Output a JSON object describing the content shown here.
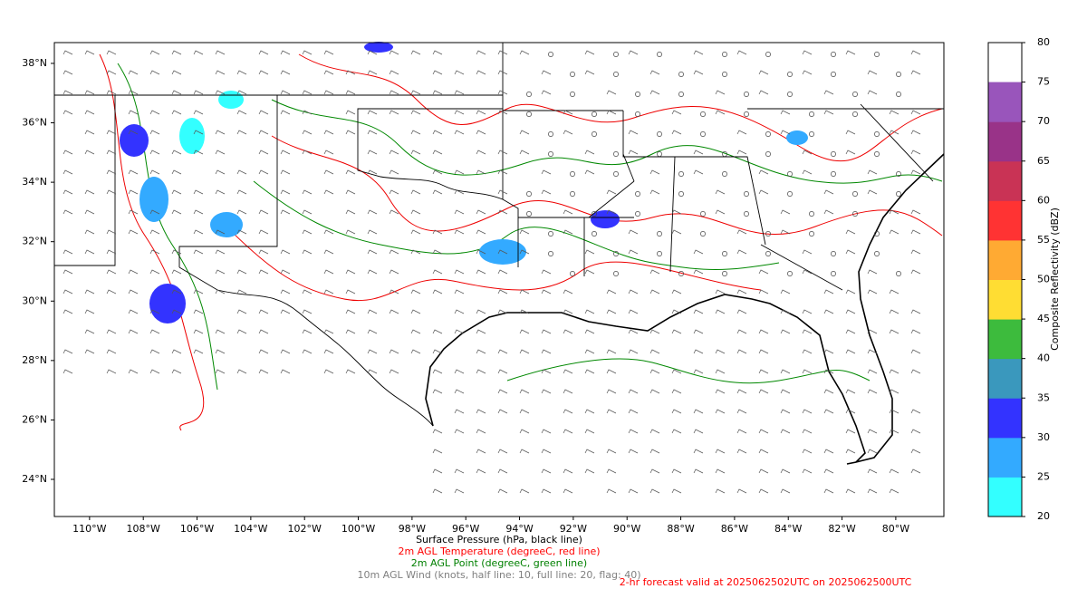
{
  "map": {
    "xticks": [
      {
        "value": -110,
        "label": "110°W"
      },
      {
        "value": -108,
        "label": "108°W"
      },
      {
        "value": -106,
        "label": "106°W"
      },
      {
        "value": -104,
        "label": "104°W"
      },
      {
        "value": -102,
        "label": "102°W"
      },
      {
        "value": -100,
        "label": "100°W"
      },
      {
        "value": -98,
        "label": "98°W"
      },
      {
        "value": -96,
        "label": "96°W"
      },
      {
        "value": -94,
        "label": "94°W"
      },
      {
        "value": -92,
        "label": "92°W"
      },
      {
        "value": -90,
        "label": "90°W"
      },
      {
        "value": -88,
        "label": "88°W"
      },
      {
        "value": -86,
        "label": "86°W"
      },
      {
        "value": -84,
        "label": "84°W"
      },
      {
        "value": -82,
        "label": "82°W"
      },
      {
        "value": -80,
        "label": "80°W"
      }
    ],
    "yticks": [
      {
        "value": 24,
        "label": "24°N"
      },
      {
        "value": 26,
        "label": "26°N"
      },
      {
        "value": 28,
        "label": "28°N"
      },
      {
        "value": 30,
        "label": "30°N"
      },
      {
        "value": 32,
        "label": "32°N"
      },
      {
        "value": 34,
        "label": "34°N"
      },
      {
        "value": 36,
        "label": "36°N"
      },
      {
        "value": 38,
        "label": "38°N"
      }
    ],
    "xlim": [
      -111.31,
      -78.21
    ],
    "ylim": [
      22.75,
      38.7
    ]
  },
  "colorbar": {
    "label": "Composite Reflectivity (dBZ)",
    "ticks": [
      20,
      25,
      30,
      35,
      40,
      45,
      50,
      55,
      60,
      65,
      70,
      75,
      80
    ],
    "colors": [
      "#33ffff",
      "#33aaff",
      "#3333ff",
      "#3a98bd",
      "#3dbb3d",
      "#ffdd33",
      "#ffaa33",
      "#ff3333",
      "#c93355",
      "#993388",
      "#9955bb",
      "#ffffff"
    ]
  },
  "captions": [
    {
      "text": "Surface Pressure (hPa, black line)",
      "color": "#000000"
    },
    {
      "text": "2m AGL Temperature (degreeC, red line)",
      "color": "#ff0000"
    },
    {
      "text": "2m AGL Point (degreeC, green line)",
      "color": "#008000"
    },
    {
      "text": "10m AGL Wind (knots, half line: 10, full line: 20, flag: 40)",
      "color": "#808080"
    }
  ],
  "footer": {
    "text": "2-hr forecast valid at 2025062502UTC on 2025062500UTC",
    "color": "#ff0000"
  }
}
